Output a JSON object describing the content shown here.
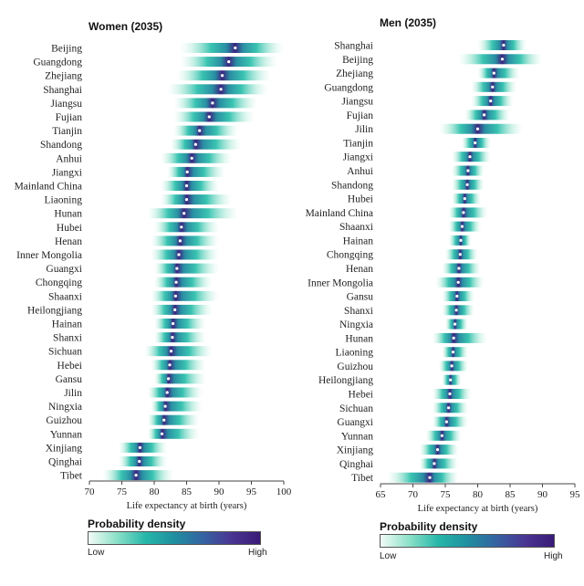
{
  "chart_data": [
    {
      "type": "density-strip",
      "title": "Women (2035)",
      "xlabel": "Life expectancy at birth (years)",
      "xlim": [
        70,
        100
      ],
      "xticks": [
        70,
        75,
        80,
        85,
        90,
        95,
        100
      ],
      "categories": [
        "Beijing",
        "Guangdong",
        "Zhejiang",
        "Shanghai",
        "Jiangsu",
        "Fujian",
        "Tianjin",
        "Shandong",
        "Anhui",
        "Jiangxi",
        "Mainland China",
        "Liaoning",
        "Hunan",
        "Hubei",
        "Henan",
        "Inner Mongolia",
        "Guangxi",
        "Chongqing",
        "Shaanxi",
        "Heilongjiang",
        "Hainan",
        "Shanxi",
        "Sichuan",
        "Hebei",
        "Gansu",
        "Jilin",
        "Ningxia",
        "Guizhou",
        "Yunnan",
        "Xinjiang",
        "Qinghai",
        "Tibet"
      ],
      "median": [
        92.5,
        91.5,
        90.5,
        90.3,
        89.0,
        88.5,
        87.0,
        86.4,
        85.8,
        85.1,
        85.0,
        85.0,
        84.6,
        84.2,
        84.0,
        83.8,
        83.5,
        83.4,
        83.3,
        83.2,
        82.9,
        82.8,
        82.6,
        82.4,
        82.2,
        82.0,
        81.7,
        81.5,
        81.2,
        77.8,
        77.7,
        77.2
      ],
      "low": [
        84.0,
        84.0,
        83.5,
        82.0,
        83.0,
        83.0,
        83.0,
        82.5,
        81.0,
        82.0,
        81.0,
        81.0,
        79.0,
        80.0,
        79.5,
        79.5,
        80.0,
        80.0,
        79.5,
        79.5,
        80.0,
        80.0,
        78.5,
        79.5,
        80.0,
        79.0,
        79.5,
        79.0,
        79.0,
        74.5,
        74.5,
        72.0
      ],
      "high": [
        100.0,
        99.0,
        98.0,
        97.5,
        96.0,
        95.5,
        93.0,
        93.5,
        92.0,
        91.0,
        90.0,
        92.0,
        93.0,
        90.0,
        90.0,
        90.0,
        90.0,
        89.0,
        90.0,
        89.0,
        88.0,
        88.0,
        89.0,
        88.0,
        88.0,
        87.5,
        87.5,
        87.0,
        87.0,
        82.0,
        82.0,
        83.0
      ],
      "legend_title": "Probability density",
      "legend_low": "Low",
      "legend_high": "High"
    },
    {
      "type": "density-strip",
      "title": "Men (2035)",
      "xlabel": "Life expectancy at birth (years)",
      "xlim": [
        65,
        95
      ],
      "xticks": [
        65,
        70,
        75,
        80,
        85,
        90,
        95
      ],
      "categories": [
        "Shanghai",
        "Beijing",
        "Zhejiang",
        "Guangdong",
        "Jiangsu",
        "Fujian",
        "Jilin",
        "Tianjin",
        "Jiangxi",
        "Anhui",
        "Shandong",
        "Hubei",
        "Mainland China",
        "Shaanxi",
        "Hainan",
        "Chongqing",
        "Henan",
        "Inner Mongolia",
        "Gansu",
        "Shanxi",
        "Ningxia",
        "Hunan",
        "Liaoning",
        "Guizhou",
        "Heilongjiang",
        "Hebei",
        "Sichuan",
        "Guangxi",
        "Yunnan",
        "Xinjiang",
        "Qinghai",
        "Tibet"
      ],
      "median": [
        84.0,
        83.8,
        82.5,
        82.3,
        82.0,
        81.0,
        80.0,
        79.6,
        78.8,
        78.5,
        78.4,
        78.0,
        77.8,
        77.6,
        77.4,
        77.3,
        77.1,
        77.0,
        76.8,
        76.7,
        76.5,
        76.3,
        76.2,
        76.0,
        75.8,
        75.7,
        75.5,
        75.2,
        74.5,
        73.8,
        73.3,
        72.6
      ],
      "low": [
        80.0,
        77.0,
        80.0,
        79.0,
        79.0,
        78.0,
        74.0,
        77.5,
        76.0,
        76.0,
        76.0,
        76.0,
        75.5,
        75.5,
        75.5,
        75.0,
        74.5,
        73.5,
        74.5,
        74.5,
        75.0,
        73.0,
        74.5,
        74.0,
        74.5,
        73.0,
        73.0,
        73.0,
        72.0,
        71.0,
        71.0,
        66.0
      ],
      "high": [
        87.5,
        90.0,
        86.5,
        86.0,
        85.5,
        85.0,
        87.0,
        82.0,
        82.0,
        81.0,
        81.0,
        80.5,
        81.5,
        80.5,
        79.0,
        80.0,
        80.5,
        81.0,
        79.5,
        79.5,
        78.5,
        81.5,
        78.5,
        78.5,
        77.5,
        79.0,
        78.5,
        78.5,
        77.5,
        77.0,
        77.0,
        77.0
      ],
      "legend_title": "Probability density",
      "legend_low": "Low",
      "legend_high": "High"
    }
  ]
}
